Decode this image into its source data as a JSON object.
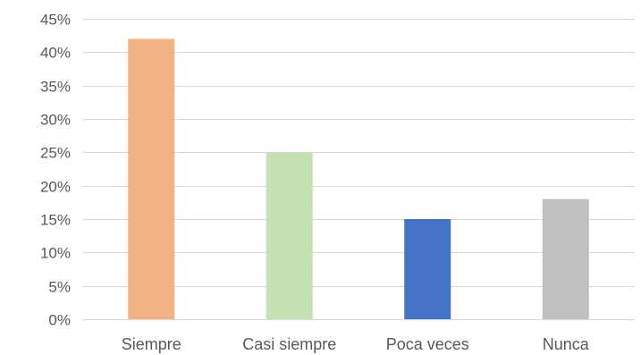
{
  "chart_data": {
    "type": "bar",
    "title": "",
    "xlabel": "",
    "ylabel": "",
    "categories": [
      "Siempre",
      "Casi siempre",
      "Poca veces",
      "Nunca"
    ],
    "values": [
      0.42,
      0.25,
      0.15,
      0.18
    ],
    "colors": [
      "#f4b183",
      "#c5e0b4",
      "#4472c4",
      "#bfbfbf"
    ],
    "ylim": [
      0,
      0.45
    ],
    "y_ticks": [
      {
        "value": 0,
        "label": "0%"
      },
      {
        "value": 0.05,
        "label": "5%"
      },
      {
        "value": 0.1,
        "label": "10%"
      },
      {
        "value": 0.15,
        "label": "15%"
      },
      {
        "value": 0.2,
        "label": "20%"
      },
      {
        "value": 0.25,
        "label": "25%"
      },
      {
        "value": 0.3,
        "label": "30%"
      },
      {
        "value": 0.35,
        "label": "35%"
      },
      {
        "value": 0.4,
        "label": "40%"
      },
      {
        "value": 0.45,
        "label": "45%"
      }
    ],
    "grid": true,
    "legend": "none"
  }
}
